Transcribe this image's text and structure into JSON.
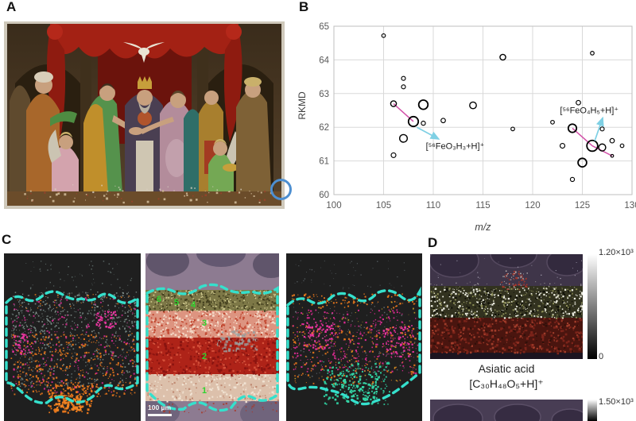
{
  "panels": {
    "a": "A",
    "b": "B",
    "c": "C",
    "d": "D"
  },
  "panel_a": {
    "content": "painting of the Marriage of the Virgin",
    "marker_color": "#4d8fd1"
  },
  "chart_data": {
    "type": "scatter",
    "title": "",
    "xlabel": "m/z",
    "ylabel": "RKMD",
    "xlim": [
      100,
      130
    ],
    "ylim": [
      60,
      65
    ],
    "xticks": [
      100,
      105,
      110,
      115,
      120,
      125,
      130
    ],
    "yticks": [
      60,
      61,
      62,
      63,
      64,
      65
    ],
    "grid": true,
    "colors": {
      "marker": "#000000",
      "magenta": "#d24fa8",
      "cyan": "#7fd0e4",
      "gridline": "#d9d9d9",
      "border": "#bfbfbf"
    },
    "points": [
      {
        "x": 105,
        "y": 64.72,
        "r": 2.3
      },
      {
        "x": 117,
        "y": 64.08,
        "r": 3.6
      },
      {
        "x": 126,
        "y": 64.2,
        "r": 2.3
      },
      {
        "x": 107,
        "y": 63.45,
        "r": 2.5
      },
      {
        "x": 107,
        "y": 63.2,
        "r": 2.5
      },
      {
        "x": 106,
        "y": 62.7,
        "r": 3.6
      },
      {
        "x": 109,
        "y": 62.67,
        "r": 5.8
      },
      {
        "x": 114,
        "y": 62.65,
        "r": 4.2
      },
      {
        "x": 108,
        "y": 62.17,
        "r": 6.2
      },
      {
        "x": 109,
        "y": 62.12,
        "r": 2.6
      },
      {
        "x": 111,
        "y": 62.2,
        "r": 2.8
      },
      {
        "x": 118,
        "y": 61.95,
        "r": 2.3
      },
      {
        "x": 122,
        "y": 62.15,
        "r": 2.3
      },
      {
        "x": 124.6,
        "y": 62.73,
        "r": 2.8
      },
      {
        "x": 124,
        "y": 61.97,
        "r": 5.2
      },
      {
        "x": 127,
        "y": 61.95,
        "r": 2.5
      },
      {
        "x": 107,
        "y": 61.67,
        "r": 4.8
      },
      {
        "x": 106,
        "y": 61.17,
        "r": 3.0
      },
      {
        "x": 123,
        "y": 61.45,
        "r": 3.0
      },
      {
        "x": 126,
        "y": 61.45,
        "r": 6.8
      },
      {
        "x": 127,
        "y": 61.4,
        "r": 4.4
      },
      {
        "x": 128,
        "y": 61.6,
        "r": 2.8
      },
      {
        "x": 129,
        "y": 61.45,
        "r": 2.3
      },
      {
        "x": 128,
        "y": 61.15,
        "r": 1.8
      },
      {
        "x": 125,
        "y": 60.95,
        "r": 5.4
      },
      {
        "x": 124,
        "y": 60.45,
        "r": 2.6
      }
    ],
    "annotations": {
      "magenta_lines": [
        [
          106,
          62.7,
          108,
          62.17
        ],
        [
          124,
          61.97,
          126,
          61.45
        ],
        [
          126,
          61.45,
          128,
          61.15
        ]
      ],
      "cyan_arrows": [
        [
          108.35,
          62.0,
          110.55,
          61.65
        ],
        [
          126.25,
          61.6,
          127.05,
          62.28
        ]
      ],
      "labels": [
        {
          "text": "[⁵⁶FeO₃H₃+H]⁺",
          "x": 112.2,
          "y": 61.44
        },
        {
          "text": "[⁵⁶FeO₄H₅+H]⁺",
          "x": 125.7,
          "y": 62.5
        }
      ]
    }
  },
  "panel_c": {
    "layer_labels": [
      "6",
      "5",
      "4",
      "3",
      "2",
      "1"
    ],
    "scale_bar": "100 µm",
    "colors": {
      "roi_outline": "#35e0cc",
      "orange": "#e5761c",
      "magenta": "#e32a96",
      "teal_gray": "#7d918d",
      "green": "#2ec79a",
      "label_green": "#2ed32e"
    }
  },
  "panel_d": {
    "colorbar1": {
      "max": "1.20×10³",
      "min": "0"
    },
    "colorbar2": {
      "max": "1.50×10³"
    },
    "caption_line1": "Asiatic acid",
    "caption_line2": "[C₃₀H₄₈O₅+H]⁺"
  }
}
